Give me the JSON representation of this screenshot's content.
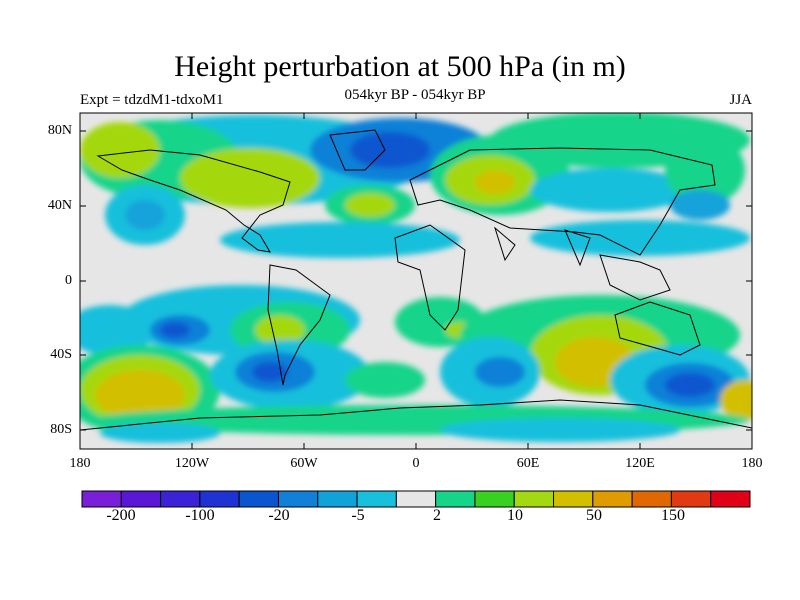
{
  "title": "Height perturbation at 500 hPa (in m)",
  "left_label": "Expt = tdzdM1-tdxoM1",
  "center_label": "054kyr BP - 054kyr BP",
  "right_label": "JJA",
  "lat_ticks": [
    "80N",
    "40N",
    "0",
    "40S",
    "80S"
  ],
  "lon_ticks": [
    "180",
    "120W",
    "60W",
    "0",
    "60E",
    "120E",
    "180"
  ],
  "colorbar": {
    "colors": [
      "#7a1fd8",
      "#5a18d6",
      "#3c22d6",
      "#1f32d3",
      "#0a56cf",
      "#1080d8",
      "#12a2da",
      "#18c0dc",
      "#e6e6e6",
      "#16d48a",
      "#3ad020",
      "#a4d810",
      "#d2c000",
      "#de9c00",
      "#e06800",
      "#e03a12",
      "#e00018"
    ],
    "label_values": [
      "-200",
      "-100",
      "-20",
      "-5",
      "2",
      "10",
      "50",
      "150"
    ]
  },
  "map_data": {
    "type": "filled-contour",
    "variable": "500 hPa height perturbation",
    "units": "m",
    "lon_range": [
      -180,
      180
    ],
    "lat_range": [
      -90,
      90
    ],
    "features": [
      {
        "region": "Arctic / North Atlantic-Greenland",
        "lon": -45,
        "lat": 70,
        "level": "-20"
      },
      {
        "region": "North America (Canada)",
        "lon": -100,
        "lat": 52,
        "level": "10"
      },
      {
        "region": "Eastern Europe / Western Russia",
        "lon": 40,
        "lat": 55,
        "level": "10"
      },
      {
        "region": "Southeast Pacific",
        "lon": -125,
        "lat": -45,
        "level": "-20"
      },
      {
        "region": "South Atlantic",
        "lon": -40,
        "lat": -58,
        "level": "-20"
      },
      {
        "region": "Southern Ocean south of Australia",
        "lon": 140,
        "lat": -55,
        "level": "-20"
      },
      {
        "region": "Southwest Pacific",
        "lon": -160,
        "lat": -60,
        "level": "50"
      },
      {
        "region": "Southern Indian Ocean",
        "lon": 95,
        "lat": -40,
        "level": "50"
      },
      {
        "region": "South Pacific near Chile",
        "lon": -75,
        "lat": -28,
        "level": "10"
      }
    ]
  }
}
